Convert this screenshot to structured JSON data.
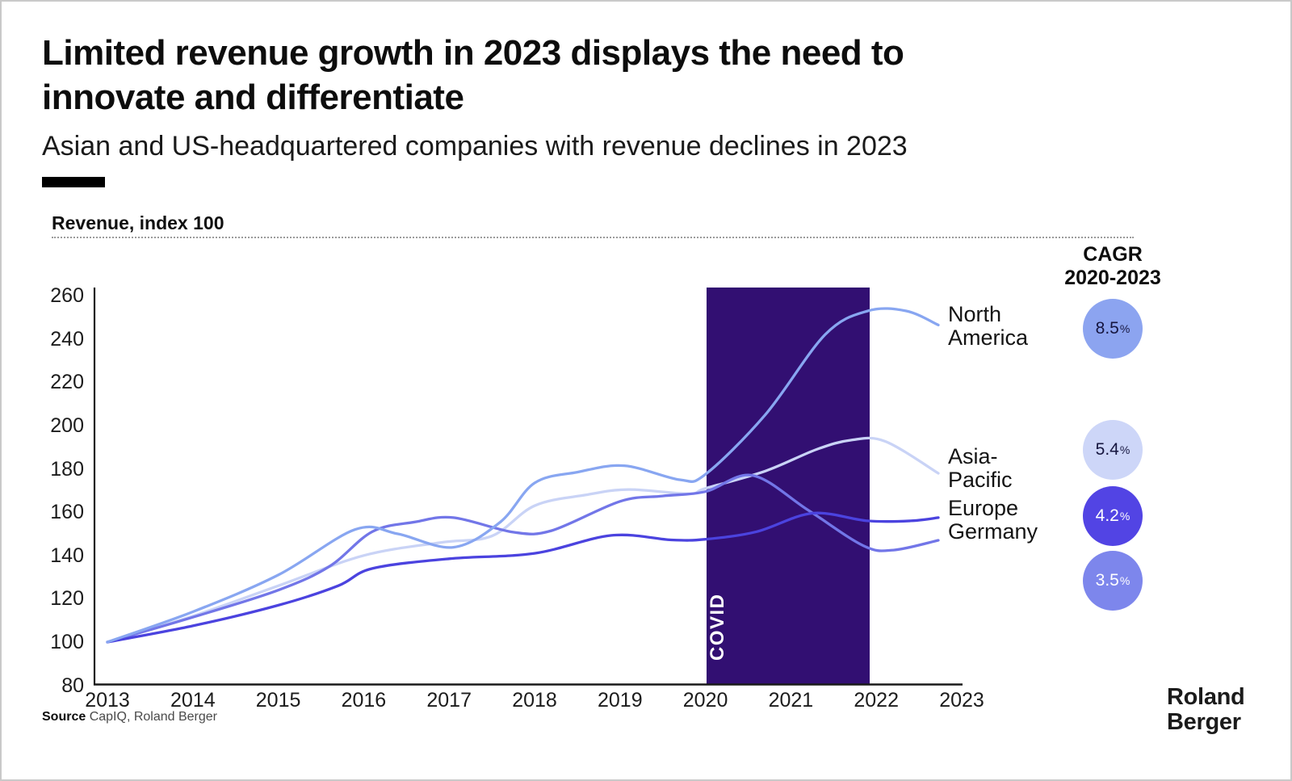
{
  "header": {
    "title_line1": "Limited revenue growth in 2023 displays the need to",
    "title_line2": "innovate and differentiate",
    "subtitle": "Asian and US-headquartered companies with revenue declines in 2023"
  },
  "chart": {
    "axis_title": "Revenue, index 100",
    "covid_label": "COVID"
  },
  "colors": {
    "covid_band": "#320F72",
    "axis": "#1a1a1a"
  },
  "legend": {
    "header_line1": "CAGR",
    "header_line2": "2020-2023",
    "entries": [
      {
        "region_line1": "North",
        "region_line2": "America",
        "value": "8.5",
        "unit": "%",
        "circle_color": "#8CA4F0",
        "text_color": "#16163F"
      },
      {
        "region_line1": "Asia-",
        "region_line2": "Pacific",
        "value": "5.4",
        "unit": "%",
        "circle_color": "#CDD6F8",
        "text_color": "#16163F"
      },
      {
        "region_line1": "Europe",
        "region_line2": "",
        "value": "4.2",
        "unit": "%",
        "circle_color": "#5244E4",
        "text_color": "#FFFFFF"
      },
      {
        "region_line1": "Germany",
        "region_line2": "",
        "value": "3.5",
        "unit": "%",
        "circle_color": "#7D86EC",
        "text_color": "#FFFFFF"
      }
    ]
  },
  "source": {
    "label": "Source",
    "text": " CapIQ, Roland Berger"
  },
  "logo": {
    "line1": "Roland",
    "line2": "Berger"
  },
  "chart_data": {
    "type": "line",
    "title": "Revenue, index 100",
    "ylabel": "Revenue, index 100",
    "xlabel": "",
    "ylim": [
      80,
      260
    ],
    "grid": false,
    "legend_position": "right",
    "yticks": [
      260,
      240,
      220,
      200,
      180,
      160,
      140,
      120,
      100,
      80
    ],
    "x": [
      2013,
      2014,
      2015,
      2016,
      2017,
      2018,
      2019,
      2020,
      2021,
      2022,
      2023
    ],
    "covid_band": {
      "label": "COVID",
      "from_year": 2020.0,
      "to_year": 2021.9
    },
    "series": [
      {
        "name": "North America",
        "cagr_2020_2023": "8.5%",
        "color": "#88A6F1",
        "values": [
          100,
          114,
          131,
          151,
          144,
          174,
          181,
          178,
          230,
          253,
          246
        ],
        "anchors": [
          [
            2013,
            100
          ],
          [
            2014,
            114
          ],
          [
            2015,
            131
          ],
          [
            2015.9,
            152
          ],
          [
            2016.4,
            150
          ],
          [
            2017.05,
            143.8
          ],
          [
            2017.6,
            155.5
          ],
          [
            2018,
            173.5
          ],
          [
            2018.5,
            178.5
          ],
          [
            2019.05,
            181.5
          ],
          [
            2019.7,
            175
          ],
          [
            2020,
            177.5
          ],
          [
            2020.7,
            205
          ],
          [
            2021.4,
            242
          ],
          [
            2021.9,
            253
          ],
          [
            2022.35,
            253
          ],
          [
            2023,
            246.5
          ]
        ]
      },
      {
        "name": "Asia-Pacific",
        "cagr_2020_2023": "5.4%",
        "color": "#C9D3F6",
        "values": [
          100,
          112,
          126,
          140,
          146,
          163,
          170,
          171,
          189,
          193,
          178
        ],
        "anchors": [
          [
            2013,
            100
          ],
          [
            2014,
            112
          ],
          [
            2015,
            126
          ],
          [
            2016,
            140
          ],
          [
            2016.9,
            146
          ],
          [
            2017.5,
            149
          ],
          [
            2018,
            163
          ],
          [
            2018.6,
            168
          ],
          [
            2019.1,
            170.5
          ],
          [
            2019.8,
            168.5
          ],
          [
            2020,
            171
          ],
          [
            2020.7,
            179
          ],
          [
            2021.3,
            189
          ],
          [
            2021.7,
            193.3
          ],
          [
            2022.1,
            192.8
          ],
          [
            2023,
            178
          ]
        ]
      },
      {
        "name": "Europe",
        "cagr_2020_2023": "4.2%",
        "color": "#4B43DF",
        "values": [
          100,
          108,
          117,
          134,
          138,
          141,
          149,
          147,
          158,
          156,
          157
        ],
        "anchors": [
          [
            2013,
            100
          ],
          [
            2014,
            107.5
          ],
          [
            2015,
            117
          ],
          [
            2015.7,
            126
          ],
          [
            2016.1,
            134
          ],
          [
            2017,
            138.5
          ],
          [
            2018,
            141
          ],
          [
            2018.9,
            149.3
          ],
          [
            2019.6,
            147.2
          ],
          [
            2020,
            147.5
          ],
          [
            2020.6,
            151
          ],
          [
            2021.25,
            159.5
          ],
          [
            2021.9,
            156
          ],
          [
            2022.4,
            156
          ],
          [
            2023,
            157.5
          ]
        ]
      },
      {
        "name": "Germany",
        "cagr_2020_2023": "3.5%",
        "color": "#7276E8",
        "values": [
          100,
          112,
          124,
          151,
          157,
          151,
          165,
          170,
          166,
          143,
          147
        ],
        "anchors": [
          [
            2013,
            100
          ],
          [
            2014,
            111.5
          ],
          [
            2015,
            124
          ],
          [
            2015.6,
            135
          ],
          [
            2016.1,
            151
          ],
          [
            2016.6,
            155.5
          ],
          [
            2017.05,
            157.5
          ],
          [
            2017.75,
            150.8
          ],
          [
            2018.2,
            151.5
          ],
          [
            2019,
            165
          ],
          [
            2019.5,
            167.5
          ],
          [
            2020,
            169.5
          ],
          [
            2020.55,
            177
          ],
          [
            2021.2,
            161
          ],
          [
            2021.85,
            144.5
          ],
          [
            2022.2,
            142.5
          ],
          [
            2023,
            147
          ]
        ]
      }
    ]
  }
}
